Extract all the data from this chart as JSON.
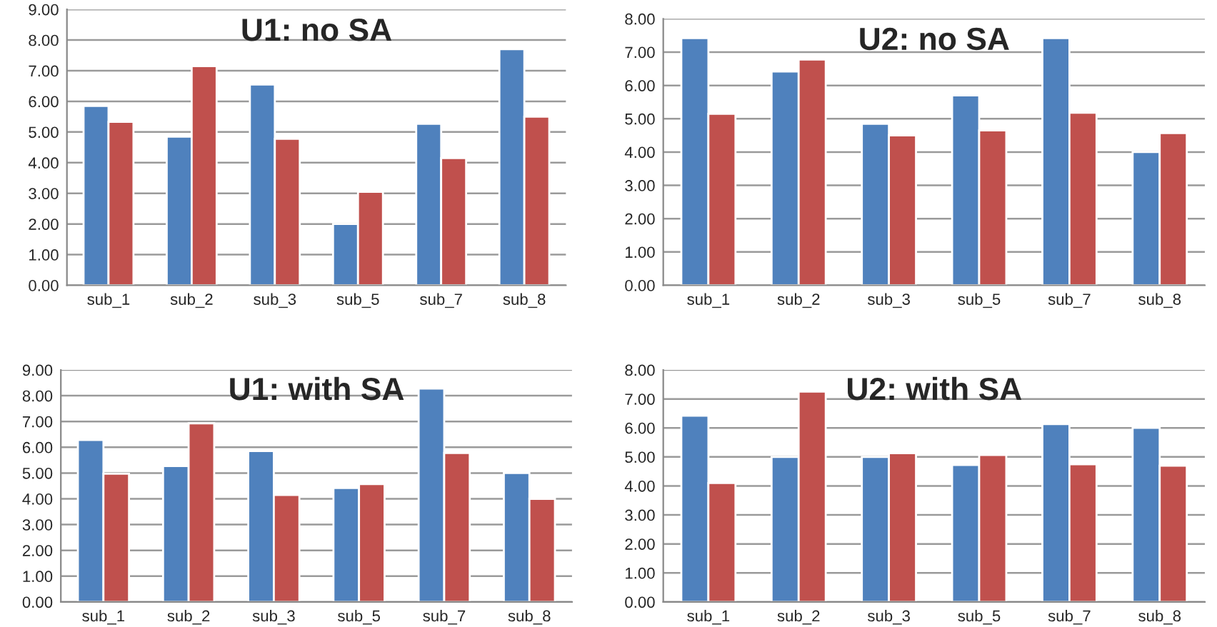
{
  "chart_data": [
    {
      "type": "bar",
      "title": "U1: no SA",
      "categories": [
        "sub_1",
        "sub_2",
        "sub_3",
        "sub_5",
        "sub_7",
        "sub_8"
      ],
      "series": [
        {
          "color": "#4f81bd",
          "values": [
            5.85,
            4.85,
            6.55,
            2.0,
            5.27,
            7.7
          ]
        },
        {
          "color": "#c0504d",
          "values": [
            5.33,
            7.15,
            4.78,
            3.05,
            4.15,
            5.5
          ]
        }
      ],
      "ylim": [
        0,
        9
      ],
      "yticks": [
        {
          "value": 0,
          "label": "0.00"
        },
        {
          "value": 1,
          "label": "1.00"
        },
        {
          "value": 2,
          "label": "2.00"
        },
        {
          "value": 3,
          "label": "3.00"
        },
        {
          "value": 4,
          "label": "4.00"
        },
        {
          "value": 5,
          "label": "5.00"
        },
        {
          "value": 6,
          "label": "6.00"
        },
        {
          "value": 7,
          "label": "7.00"
        },
        {
          "value": 8,
          "label": "8.00"
        },
        {
          "value": 9,
          "label": "9.00"
        }
      ],
      "grid": "y"
    },
    {
      "type": "bar",
      "title": "U2: no SA",
      "categories": [
        "sub_1",
        "sub_2",
        "sub_3",
        "sub_5",
        "sub_7",
        "sub_8"
      ],
      "series": [
        {
          "color": "#4f81bd",
          "values": [
            7.42,
            6.42,
            4.85,
            5.7,
            7.42,
            4.0
          ]
        },
        {
          "color": "#c0504d",
          "values": [
            5.15,
            6.78,
            4.5,
            4.65,
            5.18,
            4.57
          ]
        }
      ],
      "ylim": [
        0,
        8
      ],
      "yticks": [
        {
          "value": 0,
          "label": "0.00"
        },
        {
          "value": 1,
          "label": "1.00"
        },
        {
          "value": 2,
          "label": "2.00"
        },
        {
          "value": 3,
          "label": "3.00"
        },
        {
          "value": 4,
          "label": "4.00"
        },
        {
          "value": 5,
          "label": "5.00"
        },
        {
          "value": 6,
          "label": "6.00"
        },
        {
          "value": 7,
          "label": "7.00"
        },
        {
          "value": 8,
          "label": "8.00"
        }
      ],
      "grid": "y"
    },
    {
      "type": "bar",
      "title": "U1: with SA",
      "categories": [
        "sub_1",
        "sub_2",
        "sub_3",
        "sub_5",
        "sub_7",
        "sub_8"
      ],
      "series": [
        {
          "color": "#4f81bd",
          "values": [
            6.28,
            5.27,
            5.85,
            4.42,
            8.28,
            5.0
          ]
        },
        {
          "color": "#c0504d",
          "values": [
            4.97,
            6.93,
            4.15,
            4.57,
            5.78,
            4.0
          ]
        }
      ],
      "ylim": [
        0,
        9
      ],
      "yticks": [
        {
          "value": 0,
          "label": "0.00"
        },
        {
          "value": 1,
          "label": "1.00"
        },
        {
          "value": 2,
          "label": "2.00"
        },
        {
          "value": 3,
          "label": "3.00"
        },
        {
          "value": 4,
          "label": "4.00"
        },
        {
          "value": 5,
          "label": "5.00"
        },
        {
          "value": 6,
          "label": "6.00"
        },
        {
          "value": 7,
          "label": "7.00"
        },
        {
          "value": 8,
          "label": "8.00"
        },
        {
          "value": 9,
          "label": "9.00"
        }
      ],
      "grid": "y"
    },
    {
      "type": "bar",
      "title": "U2: with SA",
      "categories": [
        "sub_1",
        "sub_2",
        "sub_3",
        "sub_5",
        "sub_7",
        "sub_8"
      ],
      "series": [
        {
          "color": "#4f81bd",
          "values": [
            6.42,
            5.0,
            5.0,
            4.72,
            6.13,
            6.0
          ]
        },
        {
          "color": "#c0504d",
          "values": [
            4.1,
            7.25,
            5.13,
            5.07,
            4.75,
            4.7
          ]
        }
      ],
      "ylim": [
        0,
        8
      ],
      "yticks": [
        {
          "value": 0,
          "label": "0.00"
        },
        {
          "value": 1,
          "label": "1.00"
        },
        {
          "value": 2,
          "label": "2.00"
        },
        {
          "value": 3,
          "label": "3.00"
        },
        {
          "value": 4,
          "label": "4.00"
        },
        {
          "value": 5,
          "label": "5.00"
        },
        {
          "value": 6,
          "label": "6.00"
        },
        {
          "value": 7,
          "label": "7.00"
        },
        {
          "value": 8,
          "label": "8.00"
        }
      ],
      "grid": "y"
    }
  ]
}
